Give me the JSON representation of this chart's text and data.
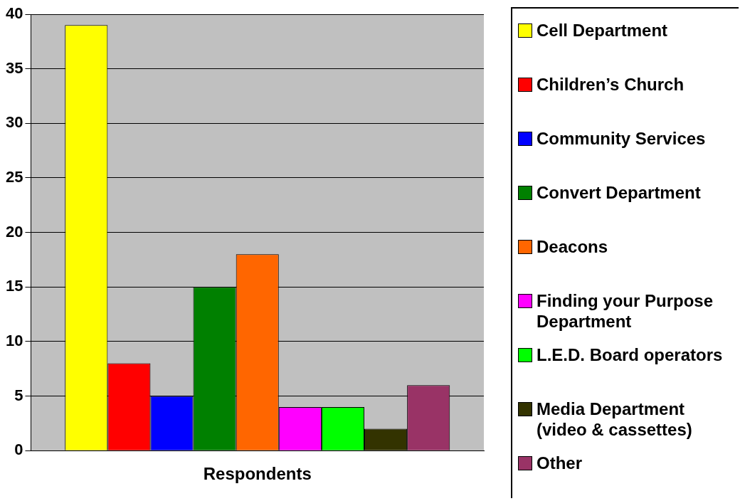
{
  "chart_data": {
    "type": "bar",
    "categories": [
      "Respondents"
    ],
    "ylim": [
      0,
      40
    ],
    "yticks": [
      0,
      5,
      10,
      15,
      20,
      25,
      30,
      35,
      40
    ],
    "grid": "y",
    "legend": "right",
    "series": [
      {
        "name": "Cell Department",
        "color": "#ffff00",
        "values": [
          39
        ]
      },
      {
        "name": "Children’s Church",
        "color": "#ff0000",
        "values": [
          8
        ]
      },
      {
        "name": "Community Services",
        "color": "#0000ff",
        "values": [
          5
        ]
      },
      {
        "name": "Convert Department",
        "color": "#008000",
        "values": [
          15
        ]
      },
      {
        "name": "Deacons",
        "color": "#ff6600",
        "values": [
          18
        ]
      },
      {
        "name": "Finding your Purpose Department",
        "color": "#ff00ff",
        "values": [
          4
        ]
      },
      {
        "name": "L.E.D. Board operators",
        "color": "#00ff00",
        "values": [
          4
        ]
      },
      {
        "name": "Media Department (video & cassettes)",
        "color": "#333300",
        "values": [
          2
        ]
      },
      {
        "name": "Other",
        "color": "#993366",
        "values": [
          6
        ]
      }
    ]
  }
}
